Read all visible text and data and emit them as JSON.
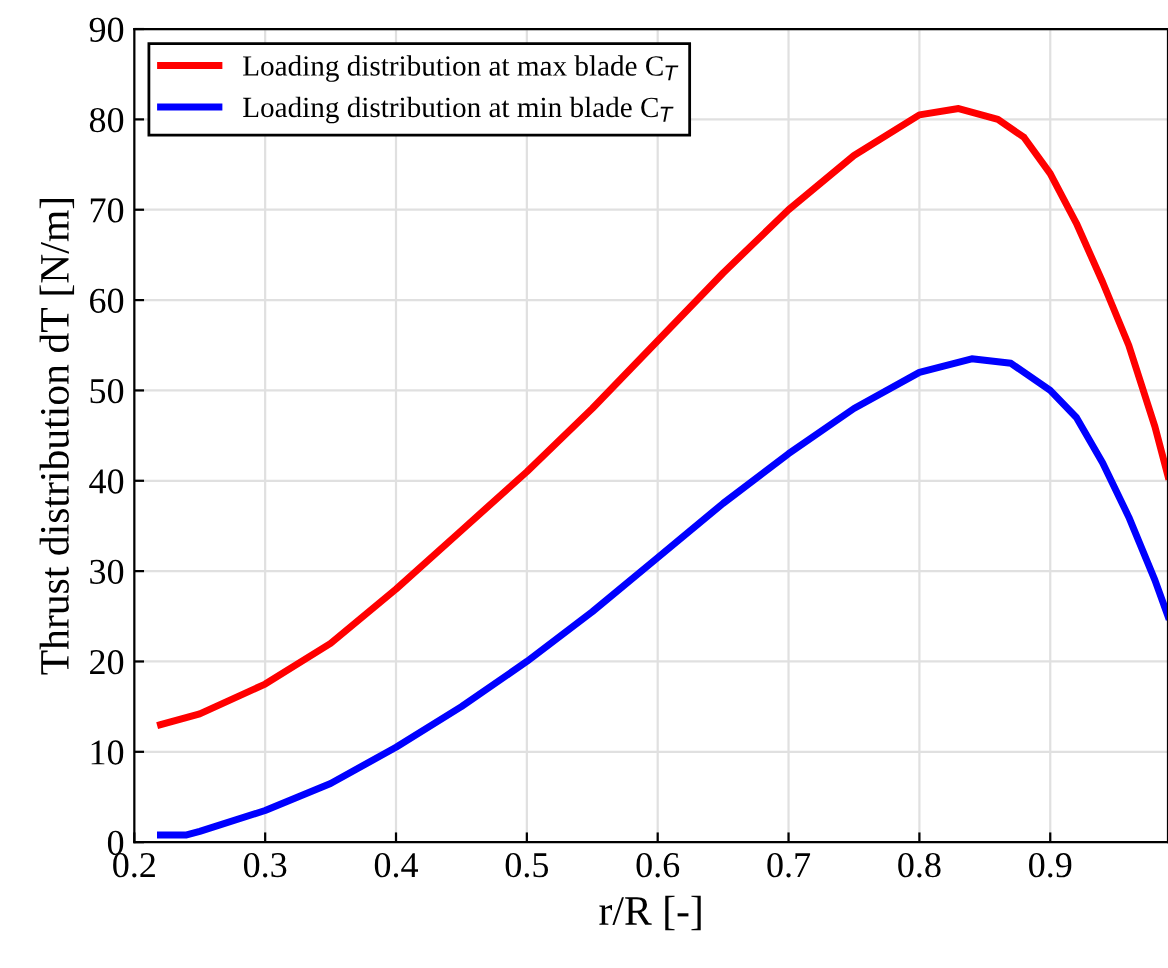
{
  "chart_data": {
    "type": "line",
    "xlabel": "r/R [-]",
    "ylabel": "Thrust distribution dT [N/m]",
    "xlim": [
      0.2,
      0.99
    ],
    "ylim": [
      0,
      90
    ],
    "xticks": [
      0.2,
      0.3,
      0.4,
      0.5,
      0.6,
      0.7,
      0.8,
      0.9
    ],
    "yticks": [
      0,
      10,
      20,
      30,
      40,
      50,
      60,
      70,
      80,
      90
    ],
    "grid": true,
    "legend": "top left",
    "series": [
      {
        "name": "Loading distribution at max blade C$_{T}$",
        "color": "#ff0000",
        "x": [
          0.22,
          0.25,
          0.3,
          0.35,
          0.4,
          0.45,
          0.5,
          0.55,
          0.6,
          0.65,
          0.7,
          0.75,
          0.8,
          0.83,
          0.86,
          0.88,
          0.9,
          0.92,
          0.94,
          0.96,
          0.98,
          0.99
        ],
        "values": [
          13,
          14.2,
          17.5,
          22,
          28,
          34.5,
          41,
          48,
          55.5,
          63,
          70,
          76,
          80.5,
          81.2,
          80,
          78,
          74,
          68.5,
          62,
          55,
          46,
          40.5
        ]
      },
      {
        "name": "Loading distribution at min blade C$_{T}$",
        "color": "#0000ff",
        "x": [
          0.22,
          0.24,
          0.25,
          0.3,
          0.35,
          0.4,
          0.45,
          0.5,
          0.55,
          0.6,
          0.65,
          0.7,
          0.75,
          0.8,
          0.84,
          0.87,
          0.9,
          0.92,
          0.94,
          0.96,
          0.98,
          0.99
        ],
        "values": [
          0.8,
          0.8,
          1.2,
          3.5,
          6.5,
          10.5,
          15,
          20,
          25.5,
          31.5,
          37.5,
          43,
          48,
          52,
          53.5,
          53,
          50,
          47,
          42,
          36,
          29,
          25
        ]
      }
    ]
  }
}
